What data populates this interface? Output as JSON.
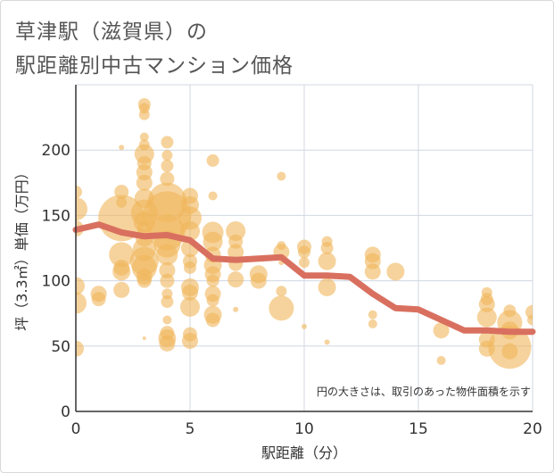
{
  "chart_data": {
    "type": "scatter",
    "title_line1": "草津駅（滋賀県）の",
    "title_line2": "駅距離別中古マンション価格",
    "xlabel": "駅距離（分）",
    "ylabel": "坪（3.3㎡）単価（万円）",
    "note": "円の大きさは、取引のあった物件面積を示す",
    "xlim": [
      0,
      20
    ],
    "ylim": [
      0,
      250
    ],
    "xticks": [
      0,
      5,
      10,
      15,
      20
    ],
    "yticks": [
      0,
      50,
      100,
      150,
      200
    ],
    "grid": true,
    "bubble_color": "#f0b65a",
    "line_color": "#d9705f",
    "trend_line": {
      "x": [
        0,
        1,
        2,
        3,
        4,
        5,
        6,
        7,
        8,
        9,
        10,
        11,
        12,
        13,
        14,
        15,
        16,
        17,
        18,
        19,
        20
      ],
      "y": [
        139,
        143,
        137,
        134,
        135,
        131,
        117,
        116,
        117,
        118,
        104,
        104,
        103,
        90,
        79,
        78,
        70,
        62,
        62,
        61,
        61
      ]
    },
    "points": [
      {
        "x": 0,
        "y": 155,
        "r": 13
      },
      {
        "x": 0,
        "y": 168,
        "r": 7
      },
      {
        "x": 0,
        "y": 140,
        "r": 9
      },
      {
        "x": 0,
        "y": 96,
        "r": 10
      },
      {
        "x": 0,
        "y": 83,
        "r": 12
      },
      {
        "x": 0,
        "y": 48,
        "r": 9
      },
      {
        "x": 1,
        "y": 90,
        "r": 9
      },
      {
        "x": 1,
        "y": 86,
        "r": 8
      },
      {
        "x": 2,
        "y": 148,
        "r": 26
      },
      {
        "x": 2,
        "y": 168,
        "r": 8
      },
      {
        "x": 2,
        "y": 160,
        "r": 6
      },
      {
        "x": 2,
        "y": 120,
        "r": 14
      },
      {
        "x": 2,
        "y": 110,
        "r": 9
      },
      {
        "x": 2,
        "y": 107,
        "r": 10
      },
      {
        "x": 2,
        "y": 93,
        "r": 9
      },
      {
        "x": 2,
        "y": 202,
        "r": 3
      },
      {
        "x": 3,
        "y": 235,
        "r": 7
      },
      {
        "x": 3,
        "y": 232,
        "r": 6
      },
      {
        "x": 3,
        "y": 227,
        "r": 6
      },
      {
        "x": 3,
        "y": 210,
        "r": 5
      },
      {
        "x": 3,
        "y": 204,
        "r": 6
      },
      {
        "x": 3,
        "y": 197,
        "r": 11
      },
      {
        "x": 3,
        "y": 190,
        "r": 8
      },
      {
        "x": 3,
        "y": 183,
        "r": 9
      },
      {
        "x": 3,
        "y": 175,
        "r": 9
      },
      {
        "x": 3,
        "y": 163,
        "r": 11
      },
      {
        "x": 3,
        "y": 152,
        "r": 15
      },
      {
        "x": 3,
        "y": 145,
        "r": 12
      },
      {
        "x": 3,
        "y": 140,
        "r": 8
      },
      {
        "x": 3,
        "y": 133,
        "r": 10
      },
      {
        "x": 3,
        "y": 124,
        "r": 13
      },
      {
        "x": 3,
        "y": 115,
        "r": 16
      },
      {
        "x": 3,
        "y": 110,
        "r": 14
      },
      {
        "x": 3,
        "y": 103,
        "r": 9
      },
      {
        "x": 3,
        "y": 100,
        "r": 8
      },
      {
        "x": 3,
        "y": 56,
        "r": 2
      },
      {
        "x": 4,
        "y": 206,
        "r": 7
      },
      {
        "x": 4,
        "y": 196,
        "r": 6
      },
      {
        "x": 4,
        "y": 188,
        "r": 7
      },
      {
        "x": 4,
        "y": 178,
        "r": 8
      },
      {
        "x": 4,
        "y": 160,
        "r": 22
      },
      {
        "x": 4,
        "y": 150,
        "r": 27
      },
      {
        "x": 4,
        "y": 137,
        "r": 20
      },
      {
        "x": 4,
        "y": 128,
        "r": 15
      },
      {
        "x": 4,
        "y": 120,
        "r": 12
      },
      {
        "x": 4,
        "y": 108,
        "r": 9
      },
      {
        "x": 4,
        "y": 100,
        "r": 8
      },
      {
        "x": 4,
        "y": 90,
        "r": 6
      },
      {
        "x": 4,
        "y": 84,
        "r": 7
      },
      {
        "x": 4,
        "y": 70,
        "r": 5
      },
      {
        "x": 4,
        "y": 60,
        "r": 8
      },
      {
        "x": 4,
        "y": 56,
        "r": 10
      },
      {
        "x": 4,
        "y": 52,
        "r": 9
      },
      {
        "x": 5,
        "y": 165,
        "r": 9
      },
      {
        "x": 5,
        "y": 158,
        "r": 10
      },
      {
        "x": 5,
        "y": 148,
        "r": 13
      },
      {
        "x": 5,
        "y": 138,
        "r": 11
      },
      {
        "x": 5,
        "y": 125,
        "r": 10
      },
      {
        "x": 5,
        "y": 115,
        "r": 8
      },
      {
        "x": 5,
        "y": 110,
        "r": 7
      },
      {
        "x": 5,
        "y": 95,
        "r": 10
      },
      {
        "x": 5,
        "y": 91,
        "r": 9
      },
      {
        "x": 5,
        "y": 80,
        "r": 11
      },
      {
        "x": 5,
        "y": 59,
        "r": 8
      },
      {
        "x": 5,
        "y": 54,
        "r": 9
      },
      {
        "x": 6,
        "y": 192,
        "r": 7
      },
      {
        "x": 6,
        "y": 165,
        "r": 5
      },
      {
        "x": 6,
        "y": 137,
        "r": 12
      },
      {
        "x": 6,
        "y": 130,
        "r": 11
      },
      {
        "x": 6,
        "y": 120,
        "r": 9
      },
      {
        "x": 6,
        "y": 112,
        "r": 10
      },
      {
        "x": 6,
        "y": 105,
        "r": 9
      },
      {
        "x": 6,
        "y": 100,
        "r": 7
      },
      {
        "x": 6,
        "y": 90,
        "r": 9
      },
      {
        "x": 6,
        "y": 85,
        "r": 7
      },
      {
        "x": 6,
        "y": 74,
        "r": 10
      },
      {
        "x": 6,
        "y": 70,
        "r": 8
      },
      {
        "x": 7,
        "y": 138,
        "r": 11
      },
      {
        "x": 7,
        "y": 130,
        "r": 8
      },
      {
        "x": 7,
        "y": 122,
        "r": 9
      },
      {
        "x": 7,
        "y": 113,
        "r": 8
      },
      {
        "x": 7,
        "y": 101,
        "r": 9
      },
      {
        "x": 7,
        "y": 78,
        "r": 3
      },
      {
        "x": 8,
        "y": 105,
        "r": 10
      },
      {
        "x": 8,
        "y": 100,
        "r": 9
      },
      {
        "x": 9,
        "y": 180,
        "r": 5
      },
      {
        "x": 9,
        "y": 127,
        "r": 5
      },
      {
        "x": 9,
        "y": 122,
        "r": 9
      },
      {
        "x": 9,
        "y": 114,
        "r": 3
      },
      {
        "x": 9,
        "y": 92,
        "r": 6
      },
      {
        "x": 9,
        "y": 79,
        "r": 14
      },
      {
        "x": 10,
        "y": 126,
        "r": 8
      },
      {
        "x": 10,
        "y": 122,
        "r": 7
      },
      {
        "x": 10,
        "y": 114,
        "r": 6
      },
      {
        "x": 10,
        "y": 65,
        "r": 3
      },
      {
        "x": 11,
        "y": 130,
        "r": 6
      },
      {
        "x": 11,
        "y": 125,
        "r": 7
      },
      {
        "x": 11,
        "y": 115,
        "r": 10
      },
      {
        "x": 11,
        "y": 95,
        "r": 10
      },
      {
        "x": 11,
        "y": 53,
        "r": 3
      },
      {
        "x": 13,
        "y": 120,
        "r": 9
      },
      {
        "x": 13,
        "y": 115,
        "r": 9
      },
      {
        "x": 13,
        "y": 107,
        "r": 9
      },
      {
        "x": 13,
        "y": 74,
        "r": 5
      },
      {
        "x": 13,
        "y": 67,
        "r": 5
      },
      {
        "x": 14,
        "y": 107,
        "r": 10
      },
      {
        "x": 16,
        "y": 62,
        "r": 9
      },
      {
        "x": 16,
        "y": 39,
        "r": 5
      },
      {
        "x": 18,
        "y": 91,
        "r": 6
      },
      {
        "x": 18,
        "y": 86,
        "r": 7
      },
      {
        "x": 18,
        "y": 82,
        "r": 9
      },
      {
        "x": 18,
        "y": 72,
        "r": 11
      },
      {
        "x": 18,
        "y": 55,
        "r": 9
      },
      {
        "x": 18,
        "y": 48,
        "r": 9
      },
      {
        "x": 19,
        "y": 77,
        "r": 7
      },
      {
        "x": 19,
        "y": 68,
        "r": 14
      },
      {
        "x": 19,
        "y": 62,
        "r": 10
      },
      {
        "x": 19,
        "y": 49,
        "r": 24
      },
      {
        "x": 19,
        "y": 46,
        "r": 9
      },
      {
        "x": 20,
        "y": 76,
        "r": 8
      },
      {
        "x": 20,
        "y": 70,
        "r": 6
      }
    ]
  }
}
